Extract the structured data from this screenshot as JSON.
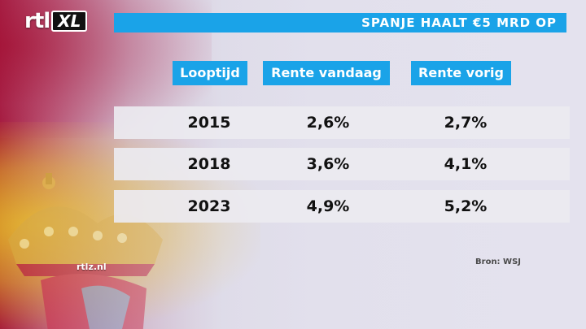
{
  "header": {
    "logo_rtl": "rtl",
    "logo_xl": "XL",
    "title": "SPANJE HAALT €5 MRD OP"
  },
  "table": {
    "columns": [
      "Looptijd",
      "Rente vandaag",
      "Rente vorig"
    ],
    "rows": [
      {
        "looptijd": "2015",
        "vandaag": "2,6%",
        "vorig": "2,7%"
      },
      {
        "looptijd": "2018",
        "vandaag": "3,6%",
        "vorig": "4,1%"
      },
      {
        "looptijd": "2023",
        "vandaag": "4,9%",
        "vorig": "5,2%"
      }
    ]
  },
  "source": "Bron: WSJ",
  "watermark": "rtlz.nl",
  "colors": {
    "accent": "#1aa3e8",
    "flag_red": "#a4173a",
    "flag_yellow": "#e6ba28"
  }
}
